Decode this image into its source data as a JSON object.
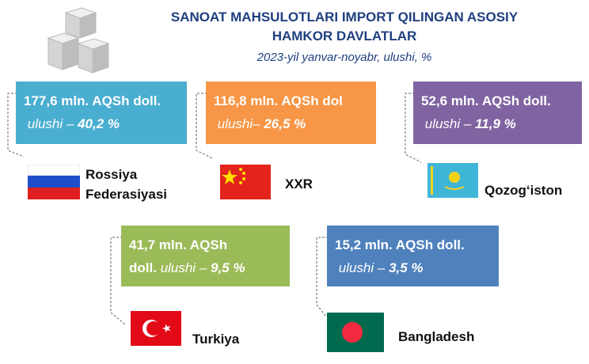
{
  "header": {
    "title_lines": [
      "SANOAT MAHSULOTLARI IMPORT QILINGAN ASOSIY",
      "HAMKOR DAVLATLAR"
    ],
    "subtitle": "2023-yil yanvar-noyabr, ulushi, %"
  },
  "partners": [
    {
      "country_lines": [
        "Rossiya",
        "Federasiyasi"
      ],
      "amount": "177,6 mln. AQSh doll.",
      "share_label": "ulushi –",
      "share": "40,2 %"
    },
    {
      "country_lines": [
        "XXR"
      ],
      "amount": "116,8 mln. AQSh dol",
      "share_label": "ulushi–",
      "share": "26,5 %"
    },
    {
      "country_lines": [
        "Qozog‘iston"
      ],
      "amount": "52,6 mln. AQSh doll.",
      "share_label": "ulushi –",
      "share": "11,9 %"
    },
    {
      "country_lines": [
        "Turkiya"
      ],
      "amount_lines": [
        "41,7 mln. AQSh",
        "doll."
      ],
      "share_label": "ulushi –",
      "share": "9,5 %"
    },
    {
      "country_lines": [
        "Bangladesh"
      ],
      "amount": "15,2 mln. AQSh doll.",
      "share_label": "ulushi –",
      "share": "3,5 %"
    }
  ]
}
